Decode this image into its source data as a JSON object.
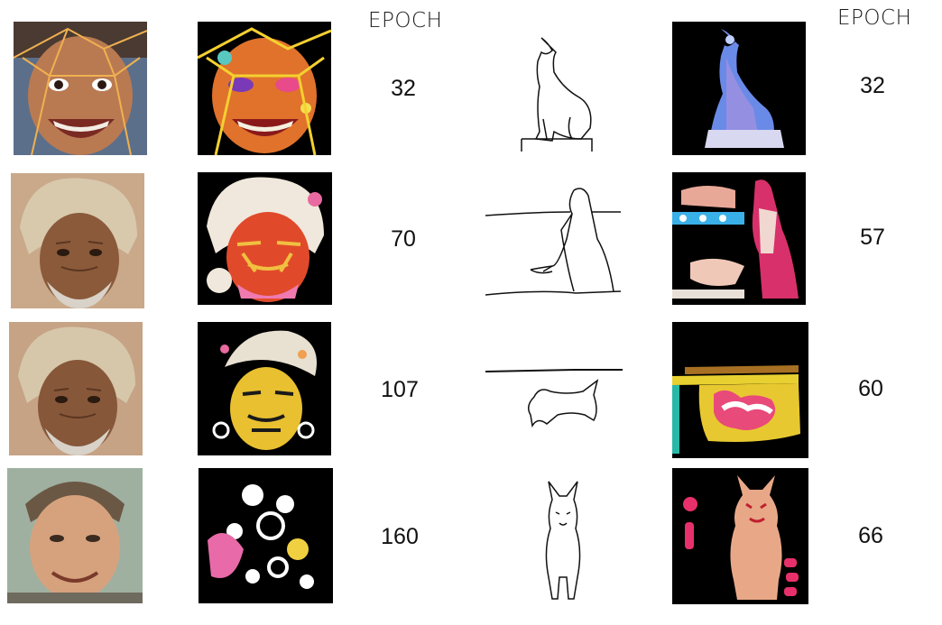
{
  "headers": {
    "left": "EPOCH",
    "right": "EPOCH"
  },
  "epochs_left": [
    "32",
    "70",
    "107",
    "160"
  ],
  "epochs_right": [
    "32",
    "57",
    "60",
    "66"
  ],
  "colors": {
    "background": "#ffffff",
    "stylized_base": "#000000"
  }
}
